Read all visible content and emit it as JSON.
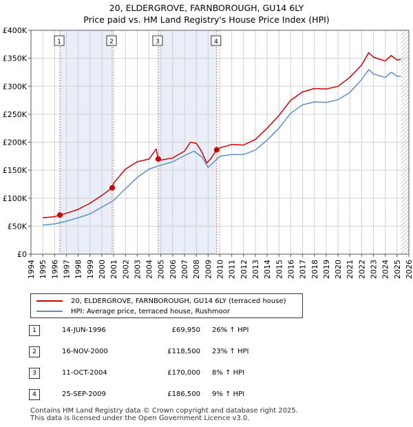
{
  "title_line1": "20, ELDERGROVE, FARNBOROUGH, GU14 6LY",
  "title_line2": "Price paid vs. HM Land Registry's House Price Index (HPI)",
  "chart_data": {
    "type": "line",
    "title": "Price paid vs. HM Land Registry's House Price Index (HPI)",
    "xlim": [
      1994,
      2026
    ],
    "ylim": [
      0,
      400000
    ],
    "x_ticks": [
      "1994",
      "1995",
      "1996",
      "1997",
      "1998",
      "1999",
      "2000",
      "2001",
      "2002",
      "2003",
      "2004",
      "2005",
      "2006",
      "2007",
      "2008",
      "2009",
      "2010",
      "2011",
      "2012",
      "2013",
      "2014",
      "2015",
      "2016",
      "2017",
      "2018",
      "2019",
      "2020",
      "2021",
      "2022",
      "2023",
      "2024",
      "2025",
      "2026"
    ],
    "y_ticks": [
      {
        "value": 0,
        "label": "£0"
      },
      {
        "value": 50000,
        "label": "£50K"
      },
      {
        "value": 100000,
        "label": "£100K"
      },
      {
        "value": 150000,
        "label": "£150K"
      },
      {
        "value": 200000,
        "label": "£200K"
      },
      {
        "value": 250000,
        "label": "£250K"
      },
      {
        "value": 300000,
        "label": "£300K"
      },
      {
        "value": 350000,
        "label": "£350K"
      },
      {
        "value": 400000,
        "label": "£400K"
      }
    ],
    "data_start_year": 1995,
    "data_end_year": 2025.33,
    "shaded_periods": [
      [
        1996.45,
        2000.88
      ],
      [
        2004.78,
        2009.73
      ]
    ],
    "hatched_after": 2025.33,
    "series": [
      {
        "name": "20, ELDERGROVE, FARNBOROUGH, GU14 6LY (terraced house)",
        "color": "#cc0000",
        "points": [
          [
            1995,
            65000
          ],
          [
            1996,
            67000
          ],
          [
            1996.45,
            69950
          ],
          [
            1997,
            73000
          ],
          [
            1998,
            80000
          ],
          [
            1999,
            91000
          ],
          [
            2000,
            105000
          ],
          [
            2000.88,
            118500
          ],
          [
            2001,
            127000
          ],
          [
            2002,
            152000
          ],
          [
            2003,
            165000
          ],
          [
            2004,
            170000
          ],
          [
            2004.6,
            188000
          ],
          [
            2004.78,
            170000
          ],
          [
            2005,
            168000
          ],
          [
            2006,
            172000
          ],
          [
            2007,
            184000
          ],
          [
            2007.5,
            200000
          ],
          [
            2008,
            198000
          ],
          [
            2008.4,
            185000
          ],
          [
            2008.9,
            163000
          ],
          [
            2009.2,
            170000
          ],
          [
            2009.73,
            186500
          ],
          [
            2010,
            190000
          ],
          [
            2011,
            196000
          ],
          [
            2012,
            195000
          ],
          [
            2013,
            205000
          ],
          [
            2014,
            225000
          ],
          [
            2015,
            248000
          ],
          [
            2016,
            275000
          ],
          [
            2017,
            290000
          ],
          [
            2018,
            296000
          ],
          [
            2019,
            295000
          ],
          [
            2020,
            300000
          ],
          [
            2021,
            316000
          ],
          [
            2022,
            338000
          ],
          [
            2022.6,
            360000
          ],
          [
            2023,
            352000
          ],
          [
            2024,
            345000
          ],
          [
            2024.5,
            355000
          ],
          [
            2025,
            347000
          ],
          [
            2025.33,
            348000
          ]
        ]
      },
      {
        "name": "HPI: Average price, terraced house, Rushmoor",
        "color": "#5b8fc7",
        "points": [
          [
            1995,
            52000
          ],
          [
            1996,
            54000
          ],
          [
            1997,
            59000
          ],
          [
            1998,
            65000
          ],
          [
            1999,
            72000
          ],
          [
            2000,
            84000
          ],
          [
            2001,
            96000
          ],
          [
            2002,
            117000
          ],
          [
            2003,
            137000
          ],
          [
            2004,
            152000
          ],
          [
            2005,
            159000
          ],
          [
            2006,
            165000
          ],
          [
            2007,
            176000
          ],
          [
            2007.8,
            184000
          ],
          [
            2008.5,
            173000
          ],
          [
            2009,
            155000
          ],
          [
            2009.5,
            165000
          ],
          [
            2010,
            175000
          ],
          [
            2011,
            178000
          ],
          [
            2012,
            178000
          ],
          [
            2013,
            186000
          ],
          [
            2014,
            204000
          ],
          [
            2015,
            225000
          ],
          [
            2016,
            252000
          ],
          [
            2017,
            267000
          ],
          [
            2018,
            272000
          ],
          [
            2019,
            271000
          ],
          [
            2020,
            276000
          ],
          [
            2021,
            289000
          ],
          [
            2022,
            312000
          ],
          [
            2022.6,
            330000
          ],
          [
            2023,
            322000
          ],
          [
            2024,
            316000
          ],
          [
            2024.5,
            325000
          ],
          [
            2025,
            318000
          ],
          [
            2025.33,
            318000
          ]
        ]
      }
    ],
    "markers": [
      {
        "label": "1",
        "x": 1996.45,
        "y": 69950
      },
      {
        "label": "2",
        "x": 2000.88,
        "y": 118500
      },
      {
        "label": "3",
        "x": 2004.78,
        "y": 170000
      },
      {
        "label": "4",
        "x": 2009.73,
        "y": 186500
      }
    ]
  },
  "legend": {
    "items": [
      {
        "label": "20, ELDERGROVE, FARNBOROUGH, GU14 6LY (terraced house)",
        "color": "#cc0000"
      },
      {
        "label": "HPI: Average price, terraced house, Rushmoor",
        "color": "#5b8fc7"
      }
    ]
  },
  "transactions": [
    {
      "num": "1",
      "date": "14-JUN-1996",
      "price": "£69,950",
      "hpi": "26% ↑ HPI"
    },
    {
      "num": "2",
      "date": "16-NOV-2000",
      "price": "£118,500",
      "hpi": "23% ↑ HPI"
    },
    {
      "num": "3",
      "date": "11-OCT-2004",
      "price": "£170,000",
      "hpi": "8% ↑ HPI"
    },
    {
      "num": "4",
      "date": "25-SEP-2009",
      "price": "£186,500",
      "hpi": "9% ↑ HPI"
    }
  ],
  "footer": {
    "line1": "Contains HM Land Registry data © Crown copyright and database right 2025.",
    "line2": "This data is licensed under the Open Government Licence v3.0."
  }
}
